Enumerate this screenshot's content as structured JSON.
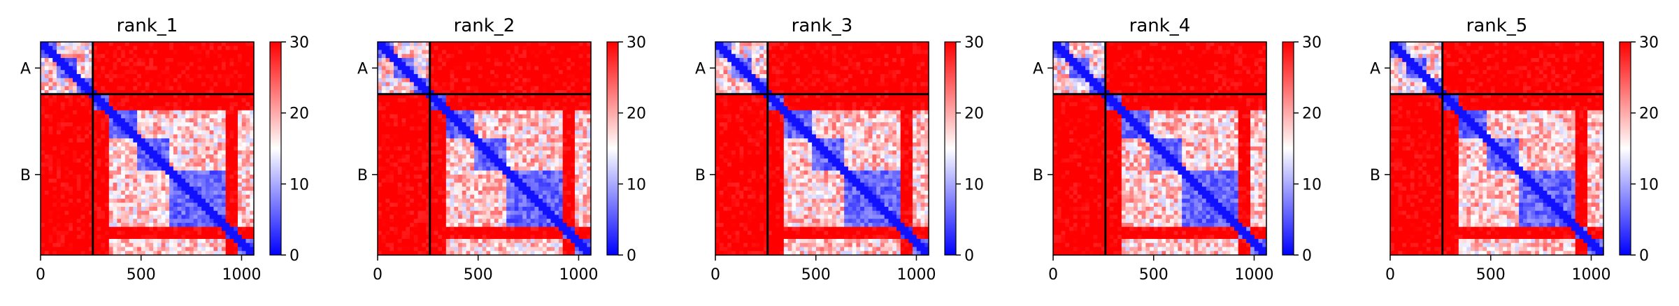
{
  "chart_data": {
    "type": "heatmap",
    "colormap": {
      "low": "#0000ff",
      "mid": "#ffffff",
      "high": "#ff0000"
    },
    "color_range": [
      0,
      30
    ],
    "colorbar_ticks": [
      "0",
      "10",
      "20",
      "30"
    ],
    "x_ticks": [
      0,
      500,
      1000
    ],
    "x_range": [
      0,
      1061
    ],
    "chain_labels": [
      "A",
      "B"
    ],
    "chain_boundary": 260,
    "panels": [
      {
        "title": "rank_1"
      },
      {
        "title": "rank_2"
      },
      {
        "title": "rank_3"
      },
      {
        "title": "rank_4"
      },
      {
        "title": "rank_5"
      }
    ]
  }
}
